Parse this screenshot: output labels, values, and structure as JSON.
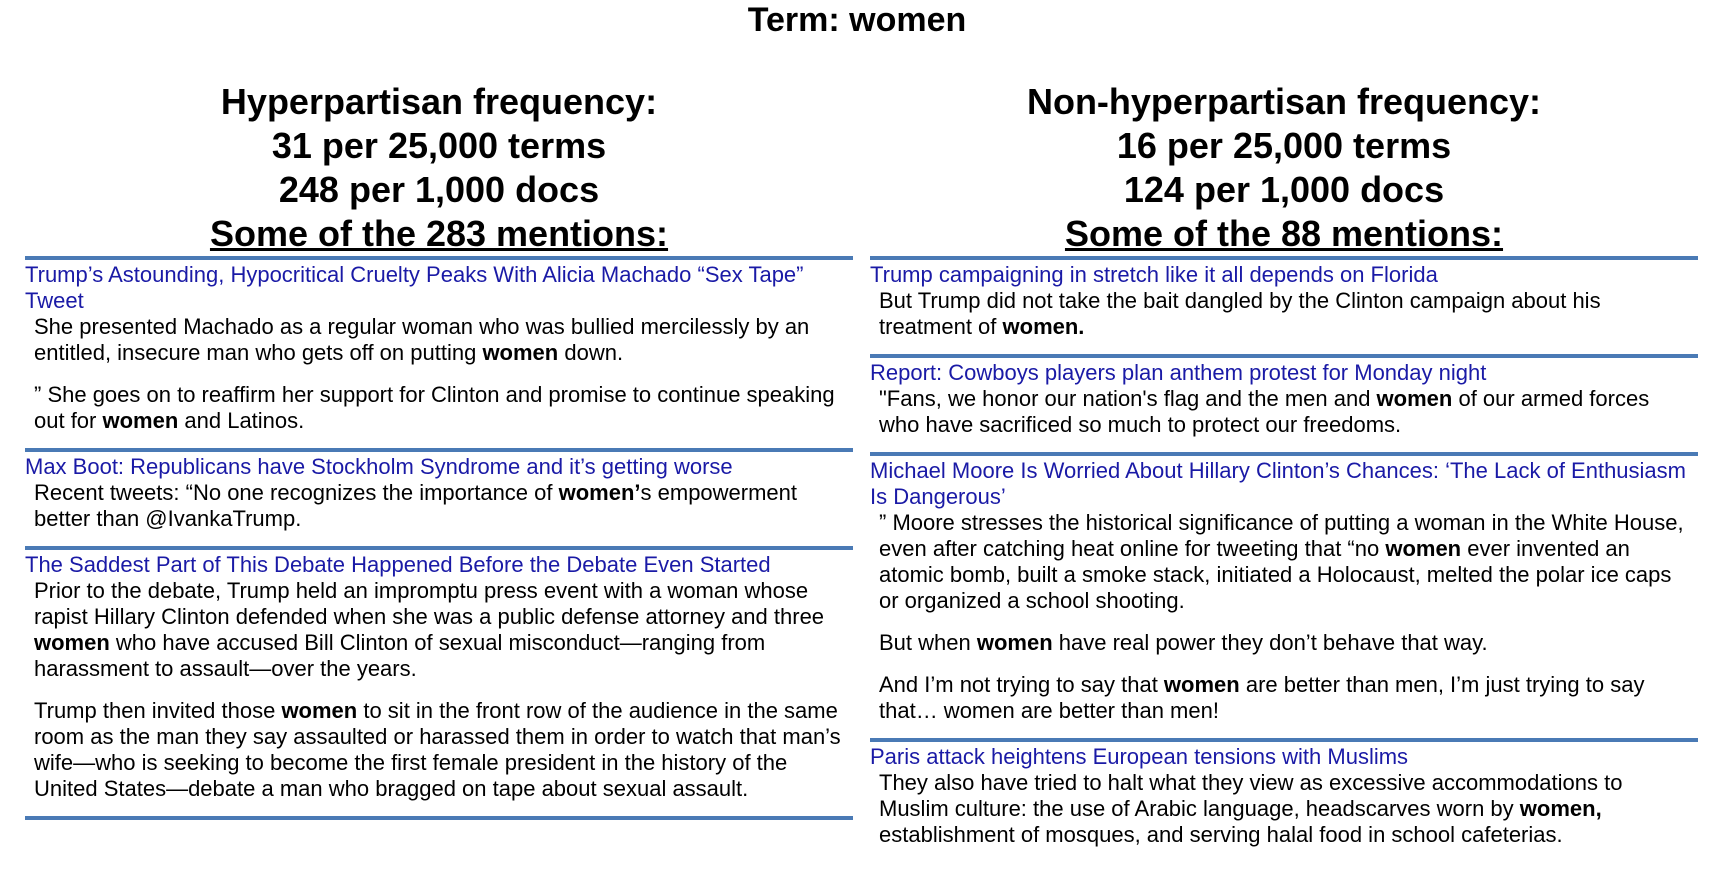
{
  "term_title": "Term: women",
  "left": {
    "heading": "Hyperpartisan frequency:",
    "per_terms": "31 per 25,000 terms",
    "per_docs": "248 per 1,000 docs",
    "mentions": "Some of the 283 mentions:",
    "articles": [
      {
        "title": "Trump’s Astounding, Hypocritical Cruelty Peaks With Alicia Machado “Sex Tape” Tweet",
        "snippets": [
          [
            "She presented Machado as a regular woman who was bullied mercilessly by an entitled, insecure man who gets off on putting ",
            "women",
            " down."
          ],
          [
            "” She goes on to reaffirm her support for Clinton and promise to continue speaking out for ",
            "women",
            " and Latinos."
          ]
        ]
      },
      {
        "title": "Max Boot: Republicans have Stockholm Syndrome and it’s getting worse",
        "snippets": [
          [
            "Recent tweets: “No one recognizes the importance of ",
            "women’",
            "s empowerment better than @IvankaTrump."
          ]
        ]
      },
      {
        "title": "The Saddest Part of This Debate Happened Before the Debate Even Started",
        "snippets": [
          [
            "Prior to the debate, Trump held an impromptu press event with a woman whose rapist Hillary Clinton defended when she was a public defense attorney and three ",
            "women",
            " who have accused Bill Clinton of sexual misconduct—ranging from harassment to assault—over the years."
          ],
          [
            "Trump then invited those ",
            "women",
            " to sit in the front row of the audience in the same room as the man they say assaulted or harassed them in order to watch that man’s wife—who is seeking to become the first female president in the history of the United States—debate a man who bragged on tape about sexual assault."
          ]
        ]
      }
    ]
  },
  "right": {
    "heading": "Non-hyperpartisan frequency:",
    "per_terms": "16 per 25,000 terms",
    "per_docs": "124 per 1,000 docs",
    "mentions": "Some of the 88 mentions:",
    "articles": [
      {
        "title": "Trump campaigning in stretch like it all depends on Florida",
        "snippets": [
          [
            "But Trump did not take the bait dangled by the Clinton campaign about his treatment of ",
            "women.",
            ""
          ]
        ]
      },
      {
        "title": "Report: Cowboys players plan anthem protest for Monday night",
        "snippets": [
          [
            "\"Fans, we honor our nation's flag and the men and ",
            "women",
            " of our armed forces who have sacrificed so much to protect our freedoms."
          ]
        ]
      },
      {
        "title": "Michael Moore Is Worried About Hillary Clinton’s Chances: ‘The Lack of Enthusiasm Is Dangerous’",
        "snippets": [
          [
            "” Moore stresses the historical significance of putting a woman in the White House, even after catching heat online for tweeting that “no ",
            "women",
            " ever invented an atomic bomb, built a smoke stack, initiated a Holocaust, melted the polar ice caps or organized a school shooting."
          ],
          [
            "But when ",
            "women",
            " have real power they don’t behave that way."
          ],
          [
            "And I’m not trying to say that ",
            "women",
            " are better than men, I’m just trying to say that… women are better than men!"
          ]
        ]
      },
      {
        "title": "Paris attack heightens European tensions with Muslims",
        "snippets": [
          [
            "They also have tried to halt what they view as excessive accommodations to Muslim culture: the use of Arabic language, headscarves worn by ",
            "women,",
            " establishment of mosques, and serving halal food in school cafeterias."
          ]
        ]
      }
    ]
  }
}
